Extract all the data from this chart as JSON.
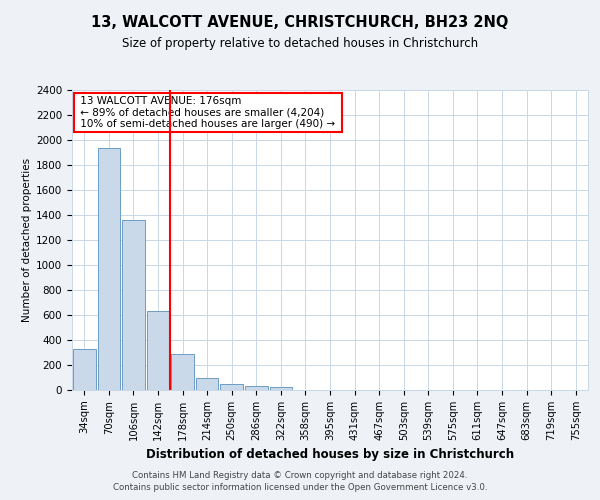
{
  "title": "13, WALCOTT AVENUE, CHRISTCHURCH, BH23 2NQ",
  "subtitle": "Size of property relative to detached houses in Christchurch",
  "xlabel": "Distribution of detached houses by size in Christchurch",
  "ylabel": "Number of detached properties",
  "footnote1": "Contains HM Land Registry data © Crown copyright and database right 2024.",
  "footnote2": "Contains public sector information licensed under the Open Government Licence v3.0.",
  "bar_labels": [
    "34sqm",
    "70sqm",
    "106sqm",
    "142sqm",
    "178sqm",
    "214sqm",
    "250sqm",
    "286sqm",
    "322sqm",
    "358sqm",
    "395sqm",
    "431sqm",
    "467sqm",
    "503sqm",
    "539sqm",
    "575sqm",
    "611sqm",
    "647sqm",
    "683sqm",
    "719sqm",
    "755sqm"
  ],
  "bar_values": [
    325,
    1940,
    1360,
    630,
    285,
    100,
    48,
    30,
    25,
    0,
    0,
    0,
    0,
    0,
    0,
    0,
    0,
    0,
    0,
    0,
    0
  ],
  "bar_color": "#c9d9ea",
  "bar_edgecolor": "#6b9ec6",
  "property_line_x": 4,
  "property_line_label": "13 WALCOTT AVENUE: 176sqm",
  "annotation_line1": "← 89% of detached houses are smaller (4,204)",
  "annotation_line2": "10% of semi-detached houses are larger (490) →",
  "ylim": [
    0,
    2400
  ],
  "yticks": [
    0,
    200,
    400,
    600,
    800,
    1000,
    1200,
    1400,
    1600,
    1800,
    2000,
    2200,
    2400
  ],
  "bg_color": "#eef2f7",
  "plot_bg_color": "#ffffff",
  "grid_color": "#c8d8e8"
}
